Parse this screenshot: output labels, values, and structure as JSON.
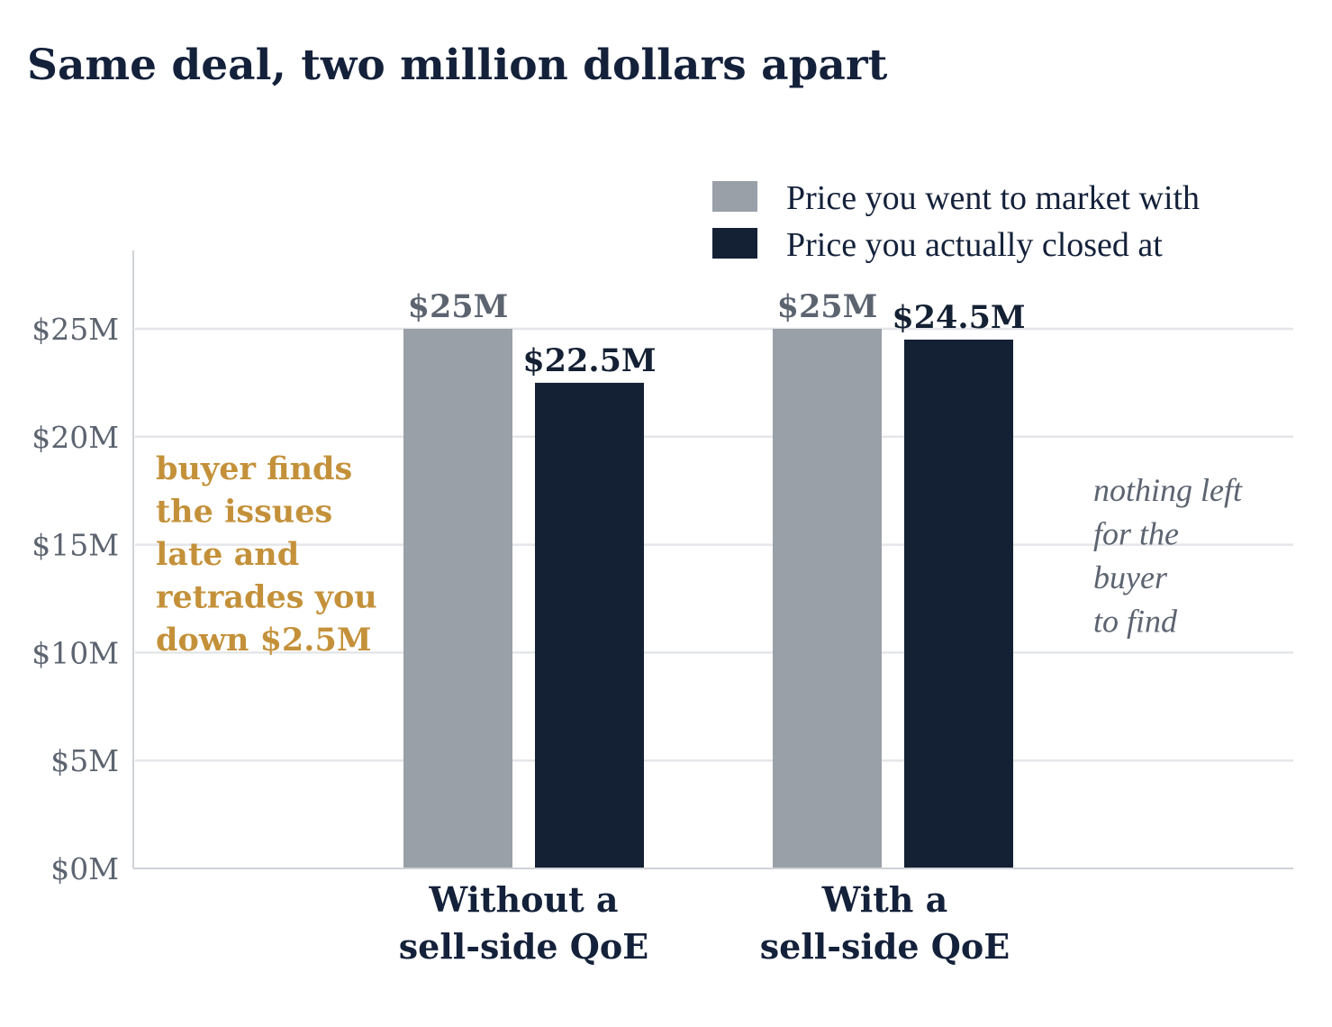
{
  "chart_data": {
    "type": "bar",
    "title": "Same deal, two million dollars apart",
    "categories": [
      [
        "Without a",
        "sell-side QoE"
      ],
      [
        "With a",
        "sell-side QoE"
      ]
    ],
    "series": [
      {
        "name": "Price you went to market with",
        "values": [
          25,
          25
        ],
        "labels": [
          "$25M",
          "$25M"
        ],
        "color": "#9aa0a8",
        "label_color": "#5c6470"
      },
      {
        "name": "Price you actually closed at",
        "values": [
          22.5,
          24.5
        ],
        "labels": [
          "$22.5M",
          "$24.5M"
        ],
        "color": "#142033",
        "label_color": "#142033"
      }
    ],
    "yunit": "$M",
    "ylim": [
      0,
      28
    ],
    "yticks": [
      0,
      5,
      10,
      15,
      20,
      25
    ],
    "ytick_labels": [
      "$0M",
      "$5M",
      "$10M",
      "$15M",
      "$20M",
      "$25M"
    ],
    "grid": true,
    "legend_position": "top-right",
    "annotations": [
      {
        "lines": [
          "buyer finds",
          "the issues",
          "late and",
          "retrades you",
          "down $2.5M"
        ],
        "color": "#c4913a"
      },
      {
        "lines": [
          "nothing left",
          "for the",
          "buyer",
          "to find"
        ],
        "color": "#5c6470"
      }
    ]
  }
}
